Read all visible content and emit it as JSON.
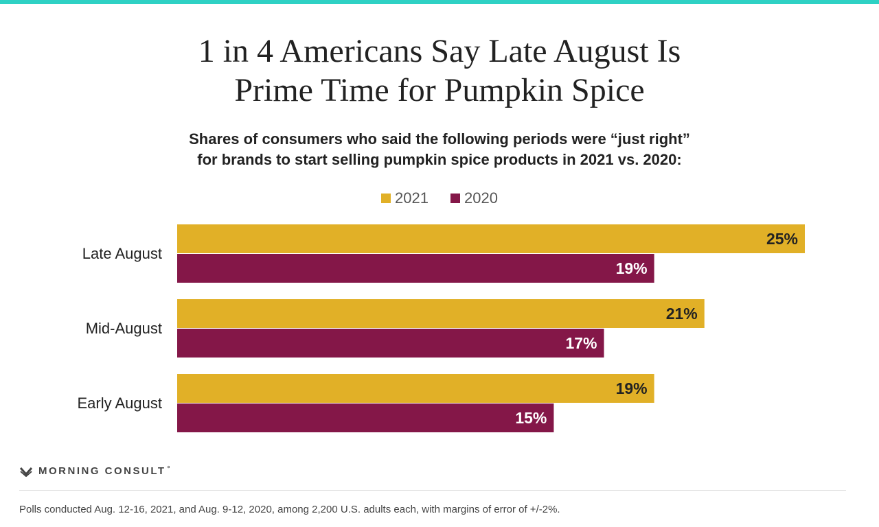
{
  "title_lines": [
    "1 in 4 Americans Say Late August Is",
    "Prime Time for Pumpkin Spice"
  ],
  "subtitle_lines": [
    "Shares of consumers who said the following periods were “just right”",
    "for brands to start selling pumpkin spice products in 2021 vs. 2020:"
  ],
  "colors": {
    "accent_band": "#2ed1c4",
    "series_2021": "#e1b027",
    "series_2020": "#841748"
  },
  "brand": {
    "name": "MORNING CONSULT",
    "mark": "°",
    "icon": "morning-consult-logo-icon"
  },
  "footnote": "Polls conducted Aug. 12-16, 2021, and Aug. 9-12, 2020, among 2,200 U.S. adults each, with margins of error of +/-2%.",
  "chart_data": {
    "type": "bar",
    "orientation": "horizontal",
    "title": "1 in 4 Americans Say Late August Is Prime Time for Pumpkin Spice",
    "subtitle": "Shares of consumers who said the following periods were “just right” for brands to start selling pumpkin spice products in 2021 vs. 2020:",
    "categories": [
      "Late August",
      "Mid-August",
      "Early August"
    ],
    "series": [
      {
        "name": "2021",
        "values": [
          25,
          21,
          19
        ],
        "labels": [
          "25%",
          "21%",
          "19%"
        ]
      },
      {
        "name": "2020",
        "values": [
          19,
          17,
          15
        ],
        "labels": [
          "19%",
          "17%",
          "15%"
        ]
      }
    ],
    "unit": "%",
    "xlim": [
      0,
      25
    ],
    "grid": false,
    "legend": "top-center"
  }
}
